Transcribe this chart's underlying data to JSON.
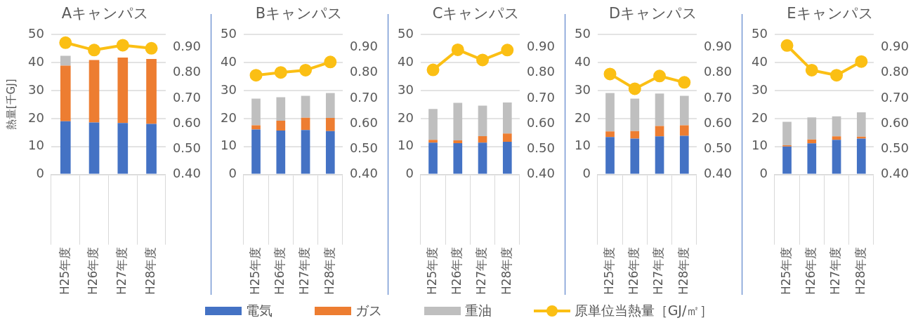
{
  "chart_data": [
    {
      "type": "bar",
      "stacked": true,
      "title": "Aキャンパス",
      "ylabel": "熱量[千GJ]",
      "categories": [
        "H25年度",
        "H26年度",
        "H27年度",
        "H28年度"
      ],
      "series": [
        {
          "name": "電気",
          "color": "#4472c4",
          "values": [
            19.0,
            18.6,
            18.4,
            18.1
          ]
        },
        {
          "name": "ガス",
          "color": "#ed7d31",
          "values": [
            19.9,
            22.3,
            23.4,
            23.2
          ]
        },
        {
          "name": "重油",
          "color": "#bfbfbf",
          "values": [
            3.5,
            null,
            null,
            null
          ]
        },
        {
          "name": "原単位当熱量［GJ/㎡］",
          "type": "line",
          "axis": "y2",
          "color": "#fbbf14",
          "values": [
            0.918,
            0.889,
            0.908,
            0.896
          ]
        }
      ],
      "ylim": [
        0,
        50
      ],
      "yticks": [
        0,
        10,
        20,
        30,
        40,
        50
      ],
      "y2lim": [
        0.4,
        0.95
      ],
      "y2ticks": [
        {
          "value": 0.4,
          "label": "0.40"
        },
        {
          "value": 0.5,
          "label": "0.50"
        },
        {
          "value": 0.6,
          "label": "0.60"
        },
        {
          "value": 0.7,
          "label": "0.70"
        },
        {
          "value": 0.8,
          "label": "0.80"
        },
        {
          "value": 0.9,
          "label": "0.90"
        }
      ],
      "grid": "y",
      "marker": "circle",
      "legend": "bottom"
    },
    {
      "type": "bar",
      "stacked": true,
      "title": "Bキャンパス",
      "categories": [
        "H25年度",
        "H26年度",
        "H27年度",
        "H28年度"
      ],
      "series": [
        {
          "color": "#4472c4",
          "values": [
            16.1,
            15.7,
            15.9,
            15.5
          ]
        },
        {
          "color": "#ed7d31",
          "values": [
            1.5,
            3.5,
            4.4,
            4.7
          ]
        },
        {
          "color": "#bfbfbf",
          "values": [
            9.5,
            8.4,
            7.8,
            8.9
          ]
        },
        {
          "type": "line",
          "axis": "y2",
          "color": "#fbbf14",
          "values": [
            0.79,
            0.801,
            0.81,
            0.842
          ]
        }
      ],
      "ylim": [
        0,
        50
      ],
      "yticks": [
        0,
        10,
        20,
        30,
        40,
        50
      ],
      "y2lim": [
        0.4,
        0.95
      ],
      "y2ticks": [
        {
          "value": 0.4,
          "label": "0.40"
        },
        {
          "value": 0.5,
          "label": "0.50"
        },
        {
          "value": 0.6,
          "label": "0.60"
        },
        {
          "value": 0.7,
          "label": "0.70"
        },
        {
          "value": 0.8,
          "label": "0.80"
        },
        {
          "value": 0.9,
          "label": "0.90"
        }
      ],
      "grid": "y",
      "marker": "circle"
    },
    {
      "type": "bar",
      "stacked": true,
      "title": "Cキャンパス",
      "categories": [
        "H25年度",
        "H26年度",
        "H27年度",
        "H28年度"
      ],
      "series": [
        {
          "color": "#4472c4",
          "values": [
            11.4,
            11.2,
            11.4,
            11.7
          ]
        },
        {
          "color": "#ed7d31",
          "values": [
            1.0,
            1.0,
            2.3,
            2.9
          ]
        },
        {
          "color": "#bfbfbf",
          "values": [
            11.0,
            13.4,
            10.9,
            11.1
          ]
        },
        {
          "type": "line",
          "axis": "y2",
          "color": "#fbbf14",
          "values": [
            0.811,
            0.89,
            0.85,
            0.889
          ]
        }
      ],
      "ylim": [
        0,
        50
      ],
      "yticks": [
        0,
        10,
        20,
        30,
        40,
        50
      ],
      "y2lim": [
        0.4,
        0.95
      ],
      "y2ticks": [
        {
          "value": 0.4,
          "label": "0.40"
        },
        {
          "value": 0.5,
          "label": "0.50"
        },
        {
          "value": 0.6,
          "label": "0.60"
        },
        {
          "value": 0.7,
          "label": "0.70"
        },
        {
          "value": 0.8,
          "label": "0.80"
        },
        {
          "value": 0.9,
          "label": "0.90"
        }
      ],
      "grid": "y",
      "marker": "circle"
    },
    {
      "type": "bar",
      "stacked": true,
      "title": "Dキャンパス",
      "categories": [
        "H25年度",
        "H26年度",
        "H27年度",
        "H28年度"
      ],
      "series": [
        {
          "color": "#4472c4",
          "values": [
            13.4,
            12.8,
            13.6,
            13.8
          ]
        },
        {
          "color": "#ed7d31",
          "values": [
            2.0,
            2.7,
            3.7,
            3.8
          ]
        },
        {
          "color": "#bfbfbf",
          "values": [
            13.7,
            11.6,
            11.6,
            10.5
          ]
        },
        {
          "type": "line",
          "axis": "y2",
          "color": "#fbbf14",
          "values": [
            0.795,
            0.737,
            0.787,
            0.762
          ]
        }
      ],
      "ylim": [
        0,
        50
      ],
      "yticks": [
        0,
        10,
        20,
        30,
        40,
        50
      ],
      "y2lim": [
        0.4,
        0.95
      ],
      "y2ticks": [
        {
          "value": 0.4,
          "label": "0.40"
        },
        {
          "value": 0.5,
          "label": "0.50"
        },
        {
          "value": 0.6,
          "label": "0.60"
        },
        {
          "value": 0.7,
          "label": "0.70"
        },
        {
          "value": 0.8,
          "label": "0.80"
        },
        {
          "value": 0.9,
          "label": "0.90"
        }
      ],
      "grid": "y",
      "marker": "circle"
    },
    {
      "type": "bar",
      "stacked": true,
      "title": "Eキャンパス",
      "categories": [
        "H25年度",
        "H26年度",
        "H27年度",
        "H28年度"
      ],
      "series": [
        {
          "color": "#4472c4",
          "values": [
            10.0,
            11.1,
            12.4,
            12.8
          ]
        },
        {
          "color": "#ed7d31",
          "values": [
            0.4,
            1.4,
            1.2,
            0.7
          ]
        },
        {
          "color": "#bfbfbf",
          "values": [
            8.4,
            7.9,
            7.2,
            8.7
          ]
        },
        {
          "type": "line",
          "axis": "y2",
          "color": "#fbbf14",
          "values": [
            0.907,
            0.81,
            0.79,
            0.844
          ]
        }
      ],
      "ylim": [
        0,
        50
      ],
      "yticks": [
        0,
        10,
        20,
        30,
        40,
        50
      ],
      "y2lim": [
        0.4,
        0.95
      ],
      "y2ticks": [
        {
          "value": 0.4,
          "label": "0.40"
        },
        {
          "value": 0.5,
          "label": "0.50"
        },
        {
          "value": 0.6,
          "label": "0.60"
        },
        {
          "value": 0.7,
          "label": "0.70"
        },
        {
          "value": 0.8,
          "label": "0.80"
        },
        {
          "value": 0.9,
          "label": "0.90"
        }
      ],
      "grid": "y",
      "marker": "circle"
    }
  ]
}
